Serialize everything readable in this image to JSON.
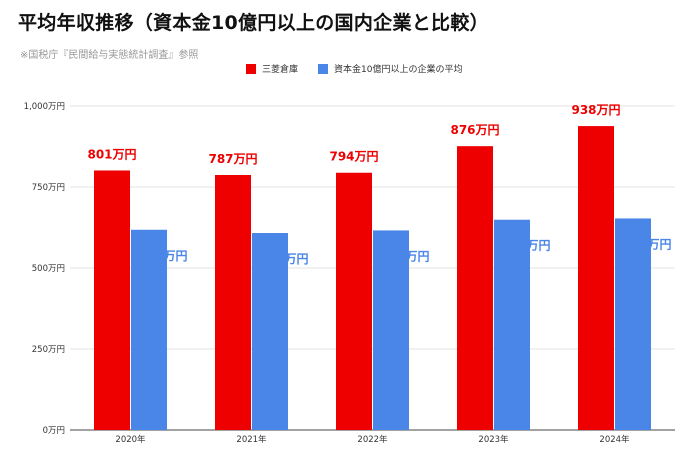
{
  "title": "平均年収推移（資本金10億円以上の国内企業と比較）",
  "source": "※国税庁『民間給与実態統計調査』参照",
  "colors": {
    "series1": "#ee0000",
    "series2": "#4a86e8",
    "grid": "#e3e3e3",
    "axis": "#444444"
  },
  "chart_data": {
    "type": "bar",
    "categories": [
      "2020年",
      "2021年",
      "2022年",
      "2023年",
      "2024年"
    ],
    "series": [
      {
        "name": "三菱倉庫",
        "values": [
          801,
          787,
          794,
          876,
          938
        ],
        "labels": [
          "801万円",
          "787万円",
          "794万円",
          "876万円",
          "938万円"
        ]
      },
      {
        "name": "資本金10億円以上の企業の平均",
        "values": [
          618,
          608,
          616,
          649,
          653
        ],
        "labels": [
          "618万円",
          "608万円",
          "616万円",
          "649万円",
          "653万円"
        ]
      }
    ],
    "ylim": [
      0,
      1000
    ],
    "yticks": [
      0,
      250,
      500,
      750,
      1000
    ],
    "ytick_labels": [
      "0万円",
      "250万円",
      "500万円",
      "750万円",
      "1,000万円"
    ],
    "grid": true,
    "legend_position": "top"
  }
}
